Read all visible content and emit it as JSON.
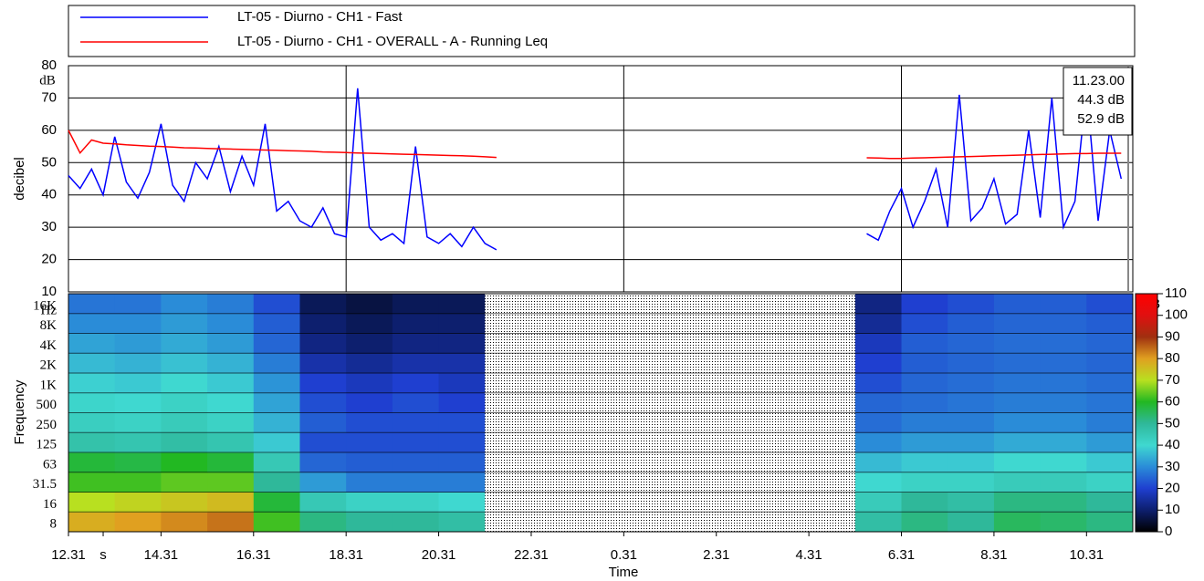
{
  "chart_data": [
    {
      "type": "line",
      "x_label": "Time",
      "y_label": "decibel",
      "y_unit": "dB",
      "x": [
        0,
        0.25,
        0.5,
        0.75,
        1,
        1.25,
        1.5,
        1.75,
        2,
        2.25,
        2.5,
        2.75,
        3,
        3.25,
        3.5,
        3.75,
        4,
        4.25,
        4.5,
        4.75,
        5,
        5.25,
        5.5,
        5.75,
        6,
        6.25,
        6.5,
        6.75,
        7,
        7.25,
        7.5,
        7.75,
        8,
        8.25,
        8.5,
        8.75,
        9,
        9.25,
        13,
        17.25,
        17.5,
        17.75,
        18,
        18.25,
        18.5,
        18.75,
        19,
        19.25,
        19.5,
        19.75,
        20,
        20.25,
        20.5,
        20.75,
        21,
        21.25,
        21.5,
        21.75,
        22,
        22.25,
        22.5,
        22.75
      ],
      "series": [
        {
          "name": "LT-05 - Diurno - CH1 - Fast",
          "color": "#0000ff",
          "values": [
            46,
            42,
            48,
            40,
            58,
            44,
            39,
            47,
            62,
            43,
            38,
            50,
            45,
            55,
            41,
            52,
            43,
            62,
            35,
            38,
            32,
            30,
            36,
            28,
            27,
            73,
            30,
            26,
            28,
            25,
            55,
            27,
            25,
            28,
            24,
            30,
            25,
            23,
            null,
            28,
            26,
            35,
            42,
            30,
            38,
            48,
            30,
            71,
            32,
            36,
            45,
            31,
            34,
            60,
            33,
            70,
            30,
            38,
            73,
            32,
            60,
            45
          ]
        },
        {
          "name": "LT-05 - Diurno - CH1 - OVERALL - A - Running Leq",
          "color": "#ff0000",
          "values": [
            60,
            53,
            57,
            56,
            55.8,
            55.5,
            55.3,
            55.1,
            55,
            54.8,
            54.6,
            54.5,
            54.4,
            54.3,
            54.2,
            54.1,
            54,
            53.9,
            53.8,
            53.7,
            53.6,
            53.5,
            53.3,
            53.2,
            53.1,
            53,
            52.9,
            52.8,
            52.7,
            52.6,
            52.5,
            52.4,
            52.3,
            52.2,
            52.1,
            52,
            51.8,
            51.6,
            null,
            51.5,
            51.4,
            51.3,
            51.3,
            51.4,
            51.5,
            51.6,
            51.7,
            51.8,
            51.9,
            52,
            52.1,
            52.2,
            52.3,
            52.4,
            52.5,
            52.6,
            52.7,
            52.8,
            52.8,
            52.9,
            52.9,
            52.9
          ]
        }
      ],
      "xlim": [
        0,
        23
      ],
      "xticks": [
        {
          "value": 0,
          "label": "12.31"
        },
        {
          "value": 0.75,
          "label": "s"
        },
        {
          "value": 2,
          "label": "14.31"
        },
        {
          "value": 4,
          "label": "16.31"
        },
        {
          "value": 6,
          "label": "18.31"
        },
        {
          "value": 8,
          "label": "20.31"
        },
        {
          "value": 10,
          "label": "22.31"
        },
        {
          "value": 12,
          "label": "0.31"
        },
        {
          "value": 14,
          "label": "2.31"
        },
        {
          "value": 16,
          "label": "4.31"
        },
        {
          "value": 18,
          "label": "6.31"
        },
        {
          "value": 20,
          "label": "8.31"
        },
        {
          "value": 22,
          "label": "10.31"
        }
      ],
      "ylim": [
        10,
        80
      ],
      "yticks": [
        10,
        20,
        30,
        40,
        50,
        60,
        70,
        80
      ],
      "grid": true,
      "cursor": {
        "time": "11.23.00",
        "readouts": [
          "44.3 dB",
          "52.9 dB"
        ]
      }
    },
    {
      "type": "heatmap",
      "y_label": "Frequency",
      "y_unit": "Hz",
      "frequencies": [
        "8",
        "16",
        "31.5",
        "63",
        "125",
        "250",
        "500",
        "1K",
        "2K",
        "4K",
        "8K",
        "16K"
      ],
      "x": [
        0,
        1,
        2,
        3,
        4,
        5,
        6,
        7,
        8,
        9,
        10,
        11,
        12,
        13,
        14,
        15,
        16,
        17,
        18,
        19,
        20,
        21,
        22
      ],
      "z": [
        [
          78,
          80,
          82,
          84,
          62,
          52,
          50,
          50,
          48,
          null,
          null,
          null,
          null,
          null,
          null,
          null,
          null,
          48,
          52,
          50,
          55,
          54,
          52
        ],
        [
          70,
          72,
          74,
          76,
          58,
          45,
          42,
          42,
          40,
          null,
          null,
          null,
          null,
          null,
          null,
          null,
          null,
          44,
          50,
          48,
          52,
          52,
          50
        ],
        [
          62,
          62,
          64,
          64,
          50,
          32,
          28,
          28,
          28,
          null,
          null,
          null,
          null,
          null,
          null,
          null,
          null,
          40,
          42,
          42,
          44,
          44,
          42
        ],
        [
          58,
          57,
          60,
          58,
          45,
          25,
          24,
          24,
          24,
          null,
          null,
          null,
          null,
          null,
          null,
          null,
          null,
          36,
          38,
          38,
          40,
          40,
          38
        ],
        [
          47,
          46,
          48,
          46,
          38,
          22,
          22,
          22,
          22,
          null,
          null,
          null,
          null,
          null,
          null,
          null,
          null,
          30,
          32,
          32,
          34,
          34,
          32
        ],
        [
          43,
          42,
          44,
          42,
          35,
          24,
          22,
          22,
          22,
          null,
          null,
          null,
          null,
          null,
          null,
          null,
          null,
          26,
          28,
          28,
          30,
          30,
          28
        ],
        [
          41,
          40,
          42,
          40,
          33,
          22,
          20,
          22,
          20,
          null,
          null,
          null,
          null,
          null,
          null,
          null,
          null,
          25,
          26,
          27,
          28,
          28,
          27
        ],
        [
          39,
          38,
          40,
          38,
          31,
          20,
          18,
          20,
          18,
          null,
          null,
          null,
          null,
          null,
          null,
          null,
          null,
          22,
          25,
          26,
          27,
          27,
          26
        ],
        [
          36,
          35,
          37,
          35,
          28,
          16,
          14,
          16,
          16,
          null,
          null,
          null,
          null,
          null,
          null,
          null,
          null,
          20,
          24,
          25,
          26,
          26,
          25
        ],
        [
          33,
          32,
          34,
          32,
          25,
          12,
          10,
          12,
          12,
          null,
          null,
          null,
          null,
          null,
          null,
          null,
          null,
          18,
          24,
          25,
          26,
          26,
          25
        ],
        [
          30,
          30,
          32,
          30,
          24,
          10,
          8,
          10,
          10,
          null,
          null,
          null,
          null,
          null,
          null,
          null,
          null,
          14,
          22,
          24,
          25,
          25,
          24
        ],
        [
          27,
          27,
          30,
          28,
          22,
          8,
          6,
          8,
          8,
          null,
          null,
          null,
          null,
          null,
          null,
          null,
          null,
          12,
          20,
          22,
          24,
          24,
          22
        ]
      ],
      "colorbar": {
        "label": "dB",
        "lim": [
          0,
          110
        ],
        "ticks": [
          0,
          10,
          20,
          30,
          40,
          50,
          60,
          70,
          80,
          90,
          100,
          110
        ],
        "colors": [
          "#000000",
          "#0d1f6e",
          "#1f3fd0",
          "#2a8cd8",
          "#3fd8d0",
          "#2fb89a",
          "#22b822",
          "#b8e020",
          "#e0a020",
          "#a03010",
          "#e01010",
          "#ff0000"
        ]
      }
    }
  ]
}
